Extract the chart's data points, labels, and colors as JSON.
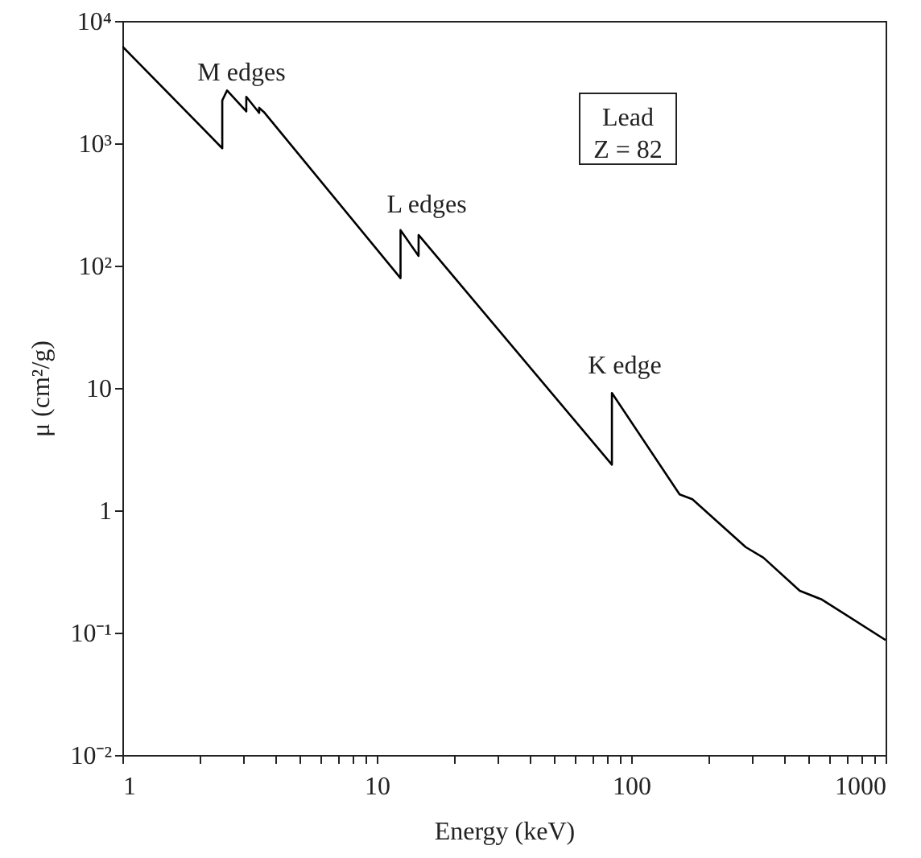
{
  "chart_data": {
    "type": "line",
    "xlabel": "Energy (keV)",
    "ylabel": "μ (cm²/g)",
    "log": "xy",
    "grid": false,
    "marker": "none",
    "line_style": "solid",
    "xlim": [
      1,
      1000
    ],
    "ylim": [
      0.01,
      10000
    ],
    "xticks": [
      1,
      {
        "value": 2,
        "label": null
      },
      {
        "value": 3,
        "label": null
      },
      {
        "value": 4,
        "label": null
      },
      {
        "value": 5,
        "label": null
      },
      {
        "value": 6,
        "label": null
      },
      {
        "value": 7,
        "label": null
      },
      {
        "value": 8,
        "label": null
      },
      {
        "value": 9,
        "label": null
      },
      10,
      {
        "value": 20,
        "label": null
      },
      {
        "value": 30,
        "label": null
      },
      {
        "value": 40,
        "label": null
      },
      {
        "value": 50,
        "label": null
      },
      {
        "value": 60,
        "label": null
      },
      {
        "value": 70,
        "label": null
      },
      {
        "value": 80,
        "label": null
      },
      {
        "value": 90,
        "label": null
      },
      100,
      {
        "value": 200,
        "label": null
      },
      {
        "value": 300,
        "label": null
      },
      {
        "value": 400,
        "label": null
      },
      {
        "value": 500,
        "label": null
      },
      {
        "value": 600,
        "label": null
      },
      {
        "value": 700,
        "label": null
      },
      {
        "value": 800,
        "label": null
      },
      {
        "value": 900,
        "label": null
      },
      1000
    ],
    "yticks": [
      {
        "value": 0.01,
        "label": "10⁻²"
      },
      {
        "value": 0.1,
        "label": "10⁻¹"
      },
      1,
      10,
      {
        "value": 100,
        "label": "10²"
      },
      {
        "value": 1000,
        "label": "10³"
      },
      {
        "value": 10000,
        "label": "10⁴"
      }
    ],
    "series": [
      {
        "color": "#000000",
        "x": [
          1,
          2.47,
          2.47,
          2.58,
          3.07,
          3.07,
          3.45,
          3.45,
          3.6,
          12.4,
          12.4,
          14.6,
          14.6,
          84,
          84,
          155,
          174,
          282,
          331,
          460,
          563,
          1000
        ],
        "values": [
          6200,
          910,
          2240,
          2700,
          1820,
          2400,
          1770,
          1950,
          1800,
          79,
          195,
          120,
          178,
          2.36,
          9.1,
          1.35,
          1.23,
          0.5,
          0.41,
          0.22,
          0.186,
          0.087
        ]
      }
    ],
    "annotations": [
      "M edges",
      "L edges",
      "K edge",
      "Lead\nZ = 82"
    ]
  }
}
